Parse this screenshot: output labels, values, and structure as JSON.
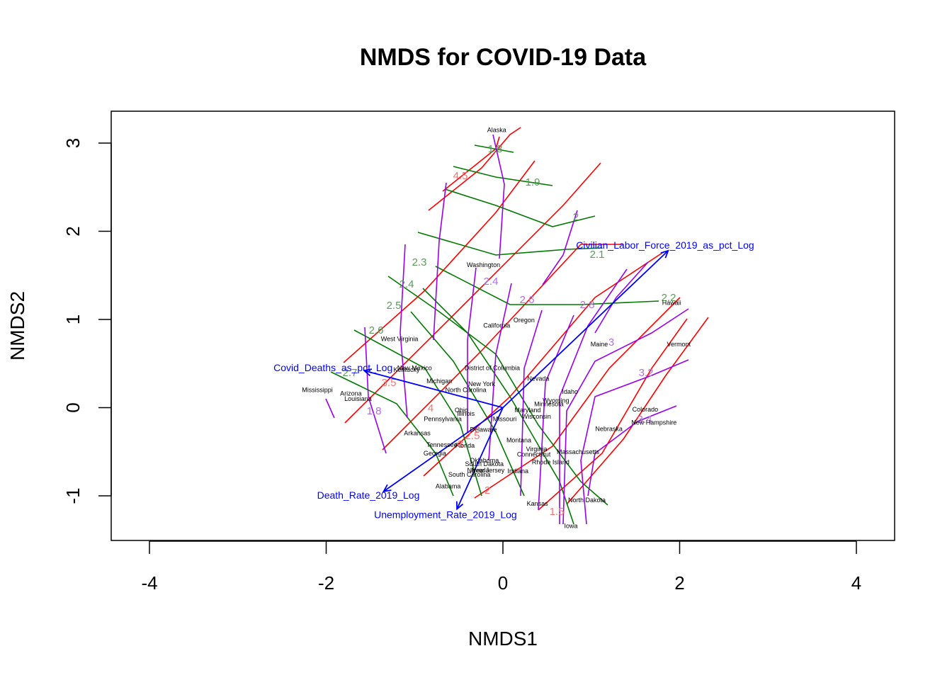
{
  "chart_data": {
    "type": "scatter",
    "title": "NMDS for COVID-19 Data",
    "xlabel": "NMDS1",
    "ylabel": "NMDS2",
    "xlim": [
      -4.2,
      4.2
    ],
    "ylim": [
      -1.5,
      3.35
    ],
    "xticks": [
      -4,
      -2,
      0,
      2,
      4
    ],
    "yticks": [
      -1,
      0,
      1,
      2,
      3
    ],
    "colors": {
      "vectors": "#0000ff",
      "contour_red": "#ff0000",
      "contour_green": "#007a00",
      "contour_purple": "#9a00ee",
      "contour_label_green": "#5a9a5a",
      "contour_label_red": "#ff7070",
      "contour_label_purple": "#b070e0"
    },
    "sites": [
      {
        "name": "Alaska",
        "x": -0.07,
        "y": 3.15
      },
      {
        "name": "Washington",
        "x": -0.22,
        "y": 1.62
      },
      {
        "name": "California",
        "x": -0.07,
        "y": 0.93
      },
      {
        "name": "Oregon",
        "x": 0.24,
        "y": 0.99
      },
      {
        "name": "Hawaii",
        "x": 1.91,
        "y": 1.19
      },
      {
        "name": "Maine",
        "x": 1.09,
        "y": 0.72
      },
      {
        "name": "Vermont",
        "x": 1.99,
        "y": 0.72
      },
      {
        "name": "West Virginia",
        "x": -1.17,
        "y": 0.78
      },
      {
        "name": "New Mexico",
        "x": -1.0,
        "y": 0.45
      },
      {
        "name": "Kentucky",
        "x": -1.09,
        "y": 0.43
      },
      {
        "name": "District of Columbia",
        "x": -0.12,
        "y": 0.45
      },
      {
        "name": "Nevada",
        "x": 0.4,
        "y": 0.33
      },
      {
        "name": "Michigan",
        "x": -0.72,
        "y": 0.3
      },
      {
        "name": "New York",
        "x": -0.24,
        "y": 0.27
      },
      {
        "name": "North Carolina",
        "x": -0.42,
        "y": 0.2
      },
      {
        "name": "Mississippi",
        "x": -2.1,
        "y": 0.2
      },
      {
        "name": "Arizona",
        "x": -1.72,
        "y": 0.16
      },
      {
        "name": "Louisiana",
        "x": -1.64,
        "y": 0.1
      },
      {
        "name": "Idaho",
        "x": 0.76,
        "y": 0.18
      },
      {
        "name": "Wyoming",
        "x": 0.6,
        "y": 0.08
      },
      {
        "name": "Minnesota",
        "x": 0.52,
        "y": 0.04
      },
      {
        "name": "Maryland",
        "x": 0.28,
        "y": -0.03
      },
      {
        "name": "Ohio",
        "x": -0.47,
        "y": -0.03
      },
      {
        "name": "Illinois",
        "x": -0.42,
        "y": -0.07
      },
      {
        "name": "Wisconsin",
        "x": 0.38,
        "y": -0.1
      },
      {
        "name": "Missouri",
        "x": 0.02,
        "y": -0.13
      },
      {
        "name": "Pennsylvania",
        "x": -0.68,
        "y": -0.13
      },
      {
        "name": "Colorado",
        "x": 1.61,
        "y": -0.02
      },
      {
        "name": "New Hampshire",
        "x": 1.71,
        "y": -0.17
      },
      {
        "name": "Nebraska",
        "x": 1.2,
        "y": -0.24
      },
      {
        "name": "Delaware",
        "x": -0.22,
        "y": -0.25
      },
      {
        "name": "Arkansas",
        "x": -0.97,
        "y": -0.29
      },
      {
        "name": "Montana",
        "x": 0.18,
        "y": -0.37
      },
      {
        "name": "Tennessee",
        "x": -0.69,
        "y": -0.42
      },
      {
        "name": "Florida",
        "x": -0.43,
        "y": -0.43
      },
      {
        "name": "Virginia",
        "x": 0.38,
        "y": -0.47
      },
      {
        "name": "Massachusetts",
        "x": 0.85,
        "y": -0.5
      },
      {
        "name": "Connecticut",
        "x": 0.35,
        "y": -0.53
      },
      {
        "name": "Georgia",
        "x": -0.77,
        "y": -0.52
      },
      {
        "name": "Rhode Island",
        "x": 0.54,
        "y": -0.62
      },
      {
        "name": "Oklahoma",
        "x": -0.21,
        "y": -0.6
      },
      {
        "name": "South Dakota",
        "x": -0.21,
        "y": -0.64
      },
      {
        "name": "Nevada",
        "x": -0.28,
        "y": -0.71
      },
      {
        "name": "New Jersey",
        "x": -0.17,
        "y": -0.71
      },
      {
        "name": "Indiana",
        "x": 0.17,
        "y": -0.72
      },
      {
        "name": "South Carolina",
        "x": -0.38,
        "y": -0.76
      },
      {
        "name": "Alabama",
        "x": -0.62,
        "y": -0.89
      },
      {
        "name": "North Dakota",
        "x": 0.95,
        "y": -1.05
      },
      {
        "name": "Kansas",
        "x": 0.39,
        "y": -1.09
      },
      {
        "name": "Iowa",
        "x": 0.77,
        "y": -1.34
      }
    ],
    "vectors": [
      {
        "name": "Civilian_Labor_Force_2019_as_pct_Log",
        "x": 1.87,
        "y": 1.78
      },
      {
        "name": "Covid_Deaths_as_pct_Log",
        "x": -1.57,
        "y": 0.42
      },
      {
        "name": "Death_Rate_2019_Log",
        "x": -1.35,
        "y": -0.95
      },
      {
        "name": "Unemployment_Rate_2019_Log",
        "x": -0.52,
        "y": -1.15
      }
    ],
    "contour_labels": {
      "green": [
        "1.8",
        "1.9",
        "2",
        "2.1",
        "2.2",
        "2.3",
        "2.4",
        "2.5",
        "2.6",
        "2.7"
      ],
      "red": [
        "4.5",
        "4",
        "3.5",
        "3",
        "2.5",
        "2",
        "1.5"
      ],
      "purple": [
        "1.8",
        "2.4",
        "2.6",
        "2.8",
        "3",
        "3.2",
        "3.4"
      ]
    }
  }
}
